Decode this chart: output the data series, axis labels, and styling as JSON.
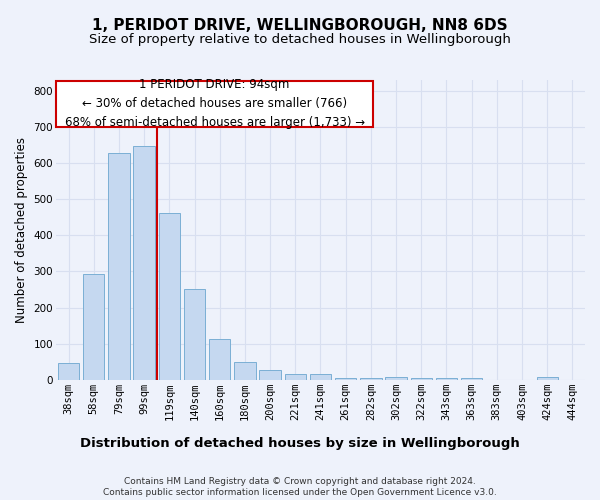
{
  "title": "1, PERIDOT DRIVE, WELLINGBOROUGH, NN8 6DS",
  "subtitle": "Size of property relative to detached houses in Wellingborough",
  "xlabel": "Distribution of detached houses by size in Wellingborough",
  "ylabel": "Number of detached properties",
  "categories": [
    "38sqm",
    "58sqm",
    "79sqm",
    "99sqm",
    "119sqm",
    "140sqm",
    "160sqm",
    "180sqm",
    "200sqm",
    "221sqm",
    "241sqm",
    "261sqm",
    "282sqm",
    "302sqm",
    "322sqm",
    "343sqm",
    "363sqm",
    "383sqm",
    "403sqm",
    "424sqm",
    "444sqm"
  ],
  "values": [
    45,
    294,
    627,
    647,
    462,
    251,
    112,
    48,
    27,
    16,
    16,
    5,
    6,
    7,
    6,
    6,
    6,
    0,
    0,
    8,
    0
  ],
  "bar_color": "#c5d8f0",
  "bar_edge_color": "#7bafd4",
  "background_color": "#eef2fb",
  "grid_color": "#d8dff0",
  "vline_x": 3.5,
  "vline_color": "#cc0000",
  "annotation_text": "1 PERIDOT DRIVE: 94sqm\n← 30% of detached houses are smaller (766)\n68% of semi-detached houses are larger (1,733) →",
  "annotation_box_color": "#ffffff",
  "annotation_box_edge": "#cc0000",
  "ylim": [
    0,
    830
  ],
  "yticks": [
    0,
    100,
    200,
    300,
    400,
    500,
    600,
    700,
    800
  ],
  "footer": "Contains HM Land Registry data © Crown copyright and database right 2024.\nContains public sector information licensed under the Open Government Licence v3.0.",
  "title_fontsize": 11,
  "subtitle_fontsize": 9.5,
  "xlabel_fontsize": 9.5,
  "ylabel_fontsize": 8.5,
  "tick_fontsize": 7.5,
  "annotation_fontsize": 8.5,
  "footer_fontsize": 6.5
}
